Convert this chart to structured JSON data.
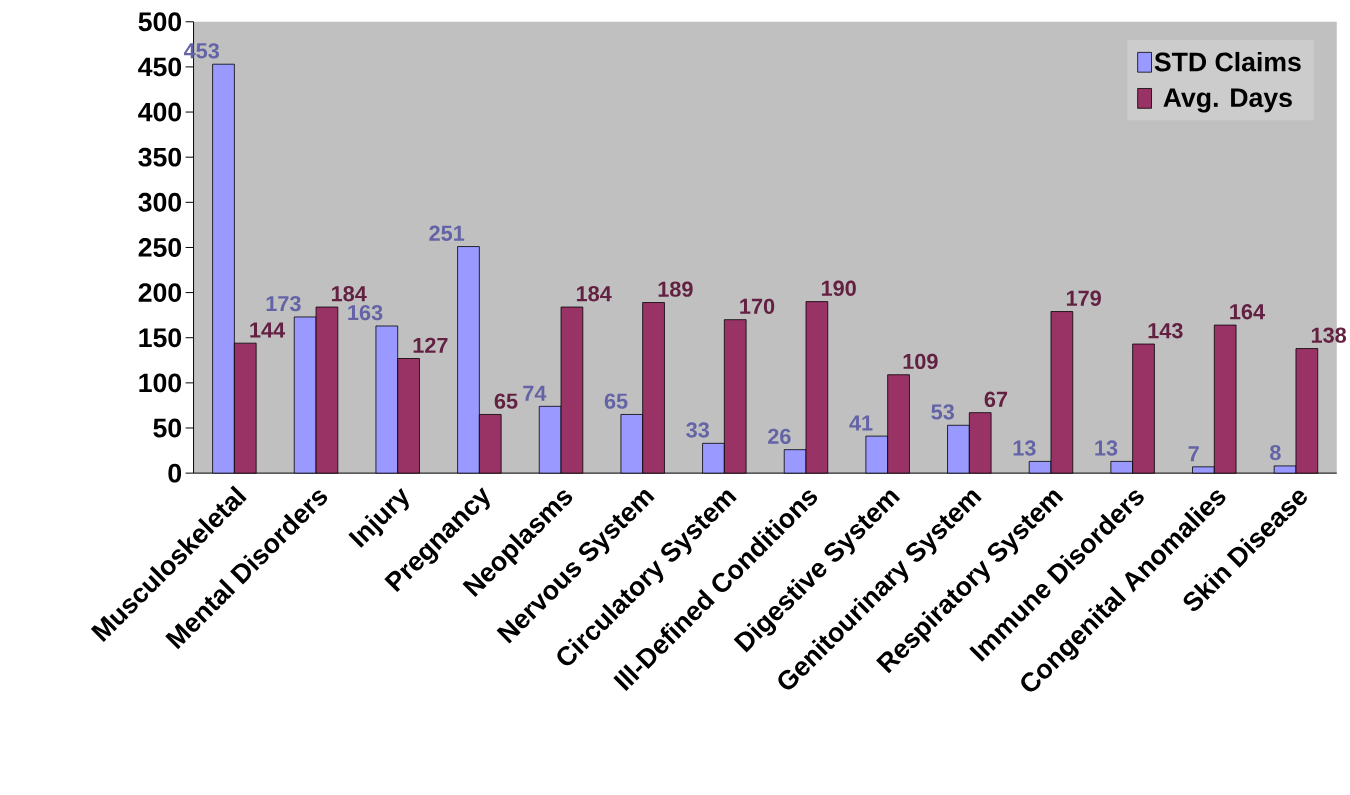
{
  "chart_data": {
    "type": "bar",
    "categories": [
      "Musculoskeletal",
      "Mental Disorders",
      "Injury",
      "Pregnancy",
      "Neoplasms",
      "Nervous System",
      "Circulatory System",
      "Ill-Defined Conditions",
      "Digestive System",
      "Genitourinary System",
      "Respiratory System",
      "Immune Disorders",
      "Congenital Anomalies",
      "Skin Disease"
    ],
    "series": [
      {
        "name": "STD Claims",
        "color": "#9999ff",
        "values": [
          453,
          173,
          163,
          251,
          74,
          65,
          33,
          26,
          41,
          53,
          13,
          13,
          7,
          8
        ]
      },
      {
        "name": "Avg. Days",
        "color": "#993366",
        "values": [
          144,
          184,
          127,
          65,
          184,
          189,
          170,
          190,
          109,
          67,
          179,
          143,
          164,
          138
        ]
      }
    ],
    "ylim": [
      0,
      500
    ],
    "yticks": [
      0,
      50,
      100,
      150,
      200,
      250,
      300,
      350,
      400,
      450,
      500
    ],
    "data_labels": true,
    "legend": "top right",
    "grid": false
  }
}
